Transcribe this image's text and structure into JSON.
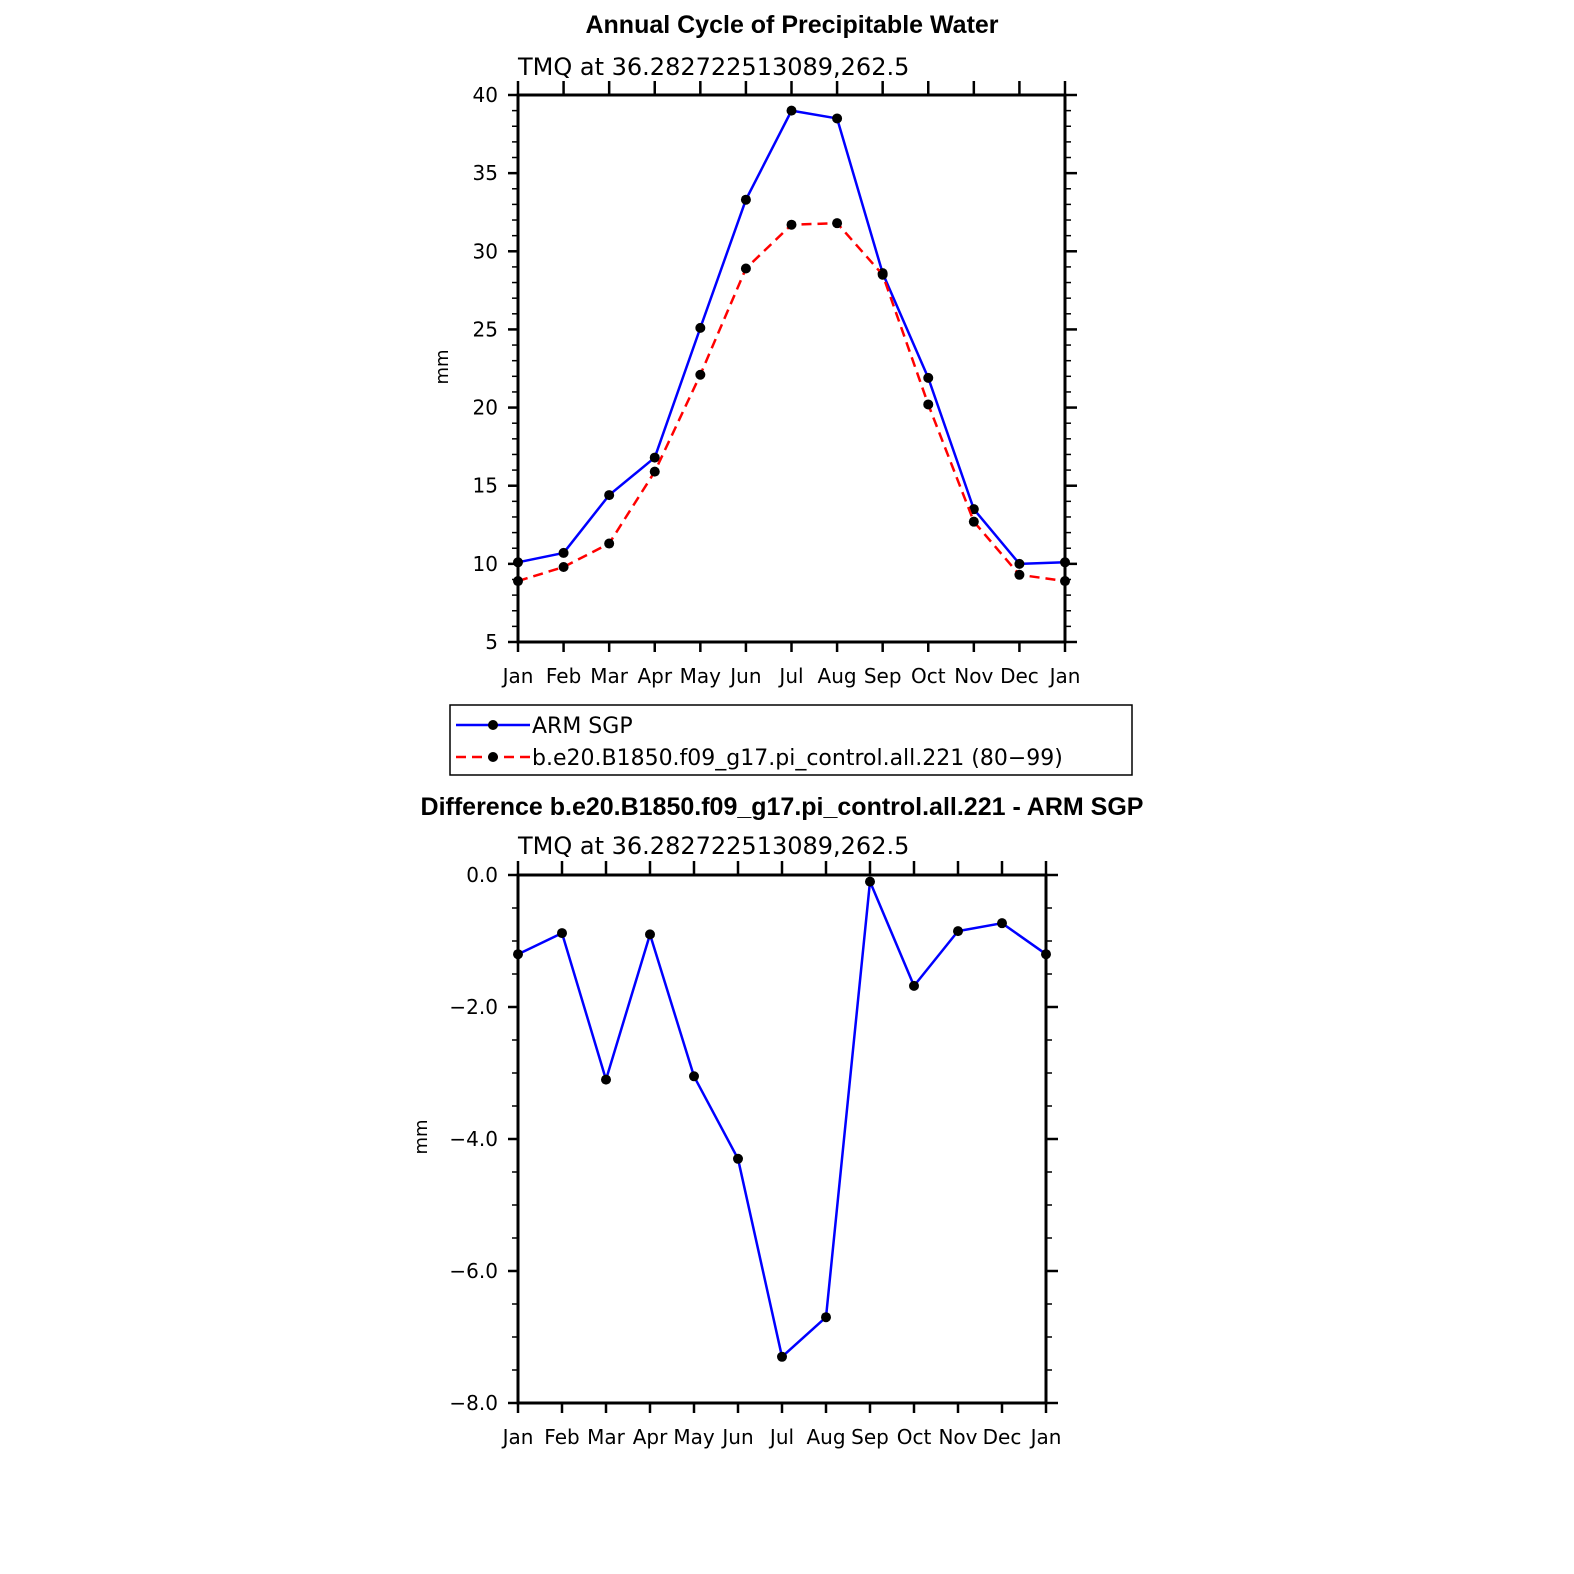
{
  "chart_data": [
    {
      "type": "line",
      "title": "Annual Cycle of Precipitable Water",
      "subtitle": "TMQ at 36.282722513089,262.5",
      "xlabel": "",
      "ylabel": "mm",
      "categories": [
        "Jan",
        "Feb",
        "Mar",
        "Apr",
        "May",
        "Jun",
        "Jul",
        "Aug",
        "Sep",
        "Oct",
        "Nov",
        "Dec",
        "Jan"
      ],
      "yticks": [
        "5",
        "10",
        "15",
        "20",
        "25",
        "30",
        "35",
        "40"
      ],
      "ylim": [
        5,
        40
      ],
      "series": [
        {
          "name": "ARM SGP",
          "color": "#0000ff",
          "dash": "solid",
          "values": [
            10.1,
            10.7,
            14.4,
            16.8,
            25.1,
            33.3,
            39.0,
            38.5,
            28.6,
            21.9,
            13.5,
            10.0,
            10.1
          ]
        },
        {
          "name": "b.e20.B1850.f09_g17.pi_control.all.221 (80−99)",
          "color": "#ff0000",
          "dash": "dashed",
          "values": [
            8.9,
            9.8,
            11.3,
            15.9,
            22.1,
            28.9,
            31.7,
            31.8,
            28.5,
            20.2,
            12.7,
            9.3,
            8.9
          ]
        }
      ],
      "legend_position": "bottom-center"
    },
    {
      "type": "line",
      "title": "Difference b.e20.B1850.f09_g17.pi_control.all.221 - ARM SGP",
      "subtitle": "TMQ at 36.282722513089,262.5",
      "xlabel": "",
      "ylabel": "mm",
      "categories": [
        "Jan",
        "Feb",
        "Mar",
        "Apr",
        "May",
        "Jun",
        "Jul",
        "Aug",
        "Sep",
        "Oct",
        "Nov",
        "Dec",
        "Jan"
      ],
      "yticks": [
        "−8.0",
        "−6.0",
        "−4.0",
        "−2.0",
        "0.0"
      ],
      "ylim": [
        -8,
        0
      ],
      "series": [
        {
          "name": "Difference",
          "color": "#0000ff",
          "dash": "solid",
          "values": [
            -1.2,
            -0.88,
            -3.1,
            -0.9,
            -3.05,
            -4.3,
            -7.3,
            -6.7,
            -0.1,
            -1.68,
            -0.85,
            -0.73,
            -1.2
          ]
        }
      ]
    }
  ]
}
